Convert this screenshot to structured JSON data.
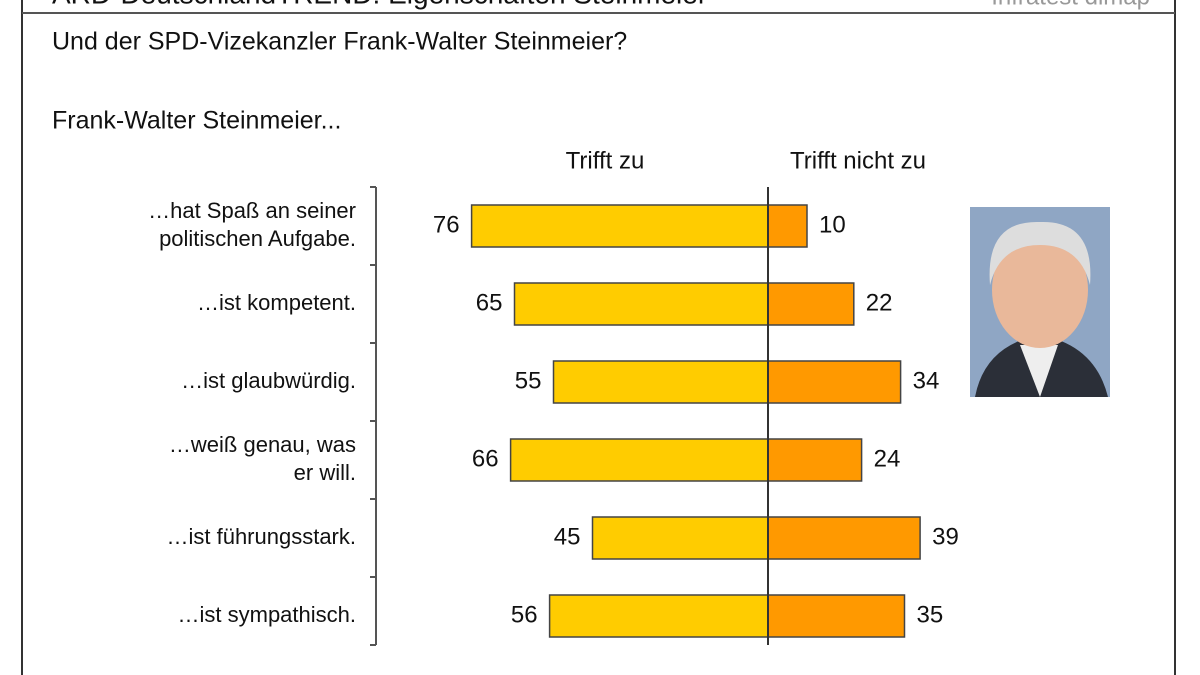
{
  "chart_data": {
    "type": "diverging-bar",
    "title": "ARD-DeutschlandTREND: Eigenschaften Steinmeier",
    "source": "Infratest dimap",
    "subtitle": "Und der SPD-Vizekanzler Frank-Walter Steinmeier?",
    "lead": "Frank-Walter Steinmeier...",
    "categories": [
      "…hat Spaß an seiner\npolitischen Aufgabe.",
      "…ist kompetent.",
      "…ist glaubwürdig.",
      "…weiß genau, was\ner will.",
      "…ist führungsstark.",
      "…ist sympathisch."
    ],
    "series": [
      {
        "name": "Trifft zu",
        "color": "#ffcc00",
        "values": [
          76,
          65,
          55,
          66,
          45,
          56
        ]
      },
      {
        "name": "Trifft nicht zu",
        "color": "#ff9900",
        "values": [
          10,
          22,
          34,
          24,
          39,
          35
        ]
      }
    ]
  }
}
